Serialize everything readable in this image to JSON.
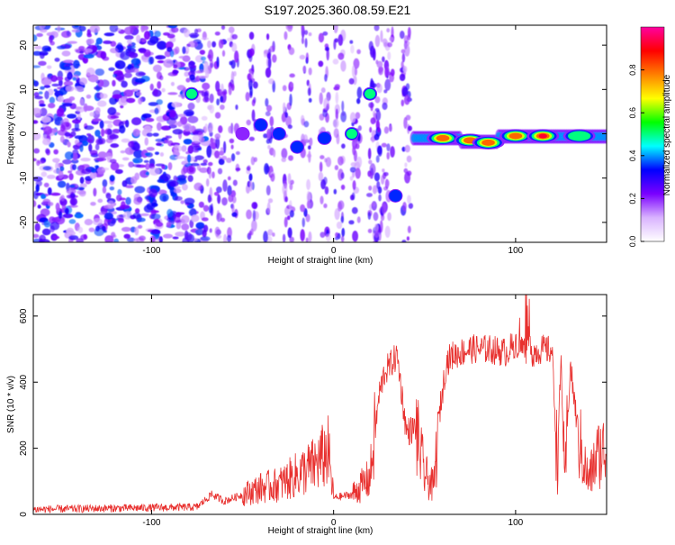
{
  "page": {
    "title": "S197.2025.360.08.59.E21"
  },
  "chart_data": [
    {
      "type": "heatmap",
      "title": "S197.2025.360.08.59.E21",
      "xlabel": "Height of straight line (km)",
      "ylabel": "Frequency (Hz)",
      "xlim": [
        -165,
        150
      ],
      "ylim": [
        -24.5,
        24.5
      ],
      "xticks": [
        -100,
        0,
        100
      ],
      "xtick_labels": [
        "-100",
        "0",
        "100"
      ],
      "yticks": [
        -20,
        -10,
        0,
        10,
        20
      ],
      "ytick_labels": [
        "-20",
        "-10",
        "0",
        "10",
        "20"
      ],
      "features": [
        {
          "x": -78,
          "y": 9,
          "amp": 0.55
        },
        {
          "x": -50,
          "y": 0,
          "amp": 0.3
        },
        {
          "x": -40,
          "y": 2,
          "amp": 0.35
        },
        {
          "x": -30,
          "y": 0,
          "amp": 0.45
        },
        {
          "x": -20,
          "y": -3,
          "amp": 0.4
        },
        {
          "x": -5,
          "y": -1,
          "amp": 0.45
        },
        {
          "x": 10,
          "y": 0,
          "amp": 0.5
        },
        {
          "x": 20,
          "y": 9,
          "amp": 0.5
        },
        {
          "x": 34,
          "y": -14,
          "amp": 0.45
        },
        {
          "x": 60,
          "y": -1,
          "amp": 0.9
        },
        {
          "x": 75,
          "y": -1.5,
          "amp": 0.85
        },
        {
          "x": 85,
          "y": -2,
          "amp": 0.9
        },
        {
          "x": 100,
          "y": -0.5,
          "amp": 0.8
        },
        {
          "x": 115,
          "y": -0.5,
          "amp": 0.95
        },
        {
          "x": 135,
          "y": -0.5,
          "amp": 0.6
        }
      ],
      "colorbar": {
        "label": "Normalized spectral amplitude",
        "range": [
          0,
          1
        ],
        "ticks": [
          0.0,
          0.2,
          0.4,
          0.6,
          0.8
        ],
        "tick_labels": [
          "0.0",
          "0.2",
          "0.4",
          "0.6",
          "0.8"
        ],
        "colors": [
          "#ffffff",
          "#d9b3ff",
          "#7a00ff",
          "#0000ff",
          "#00ffff",
          "#00ff00",
          "#ffff00",
          "#ff8000",
          "#ff0000",
          "#ff00a0"
        ]
      }
    },
    {
      "type": "line",
      "xlabel": "Height of straight line (km)",
      "ylabel": "SNR (10 * v/v)",
      "xlim": [
        -165,
        150
      ],
      "ylim": [
        0,
        665
      ],
      "xticks": [
        -100,
        0,
        100
      ],
      "xtick_labels": [
        "-100",
        "0",
        "100"
      ],
      "yticks": [
        0,
        200,
        400,
        600
      ],
      "ytick_labels": [
        "0",
        "200",
        "400",
        "600"
      ],
      "color": "#e8302e",
      "series": [
        {
          "name": "SNR",
          "x": [
            -165,
            -75,
            -67,
            -60,
            -50,
            -40,
            -30,
            -20,
            -10,
            -3,
            0,
            10,
            20,
            25,
            28,
            35,
            40,
            45,
            50,
            55,
            58,
            62,
            65,
            75,
            85,
            95,
            100,
            105,
            110,
            115,
            120,
            123,
            125,
            127,
            130,
            135,
            140,
            145,
            150
          ],
          "y": [
            15,
            22,
            60,
            40,
            60,
            80,
            90,
            120,
            150,
            190,
            50,
            60,
            110,
            360,
            430,
            480,
            250,
            260,
            120,
            80,
            300,
            460,
            480,
            500,
            500,
            490,
            520,
            500,
            490,
            500,
            495,
            150,
            470,
            80,
            450,
            220,
            100,
            180,
            200
          ]
        }
      ]
    }
  ]
}
